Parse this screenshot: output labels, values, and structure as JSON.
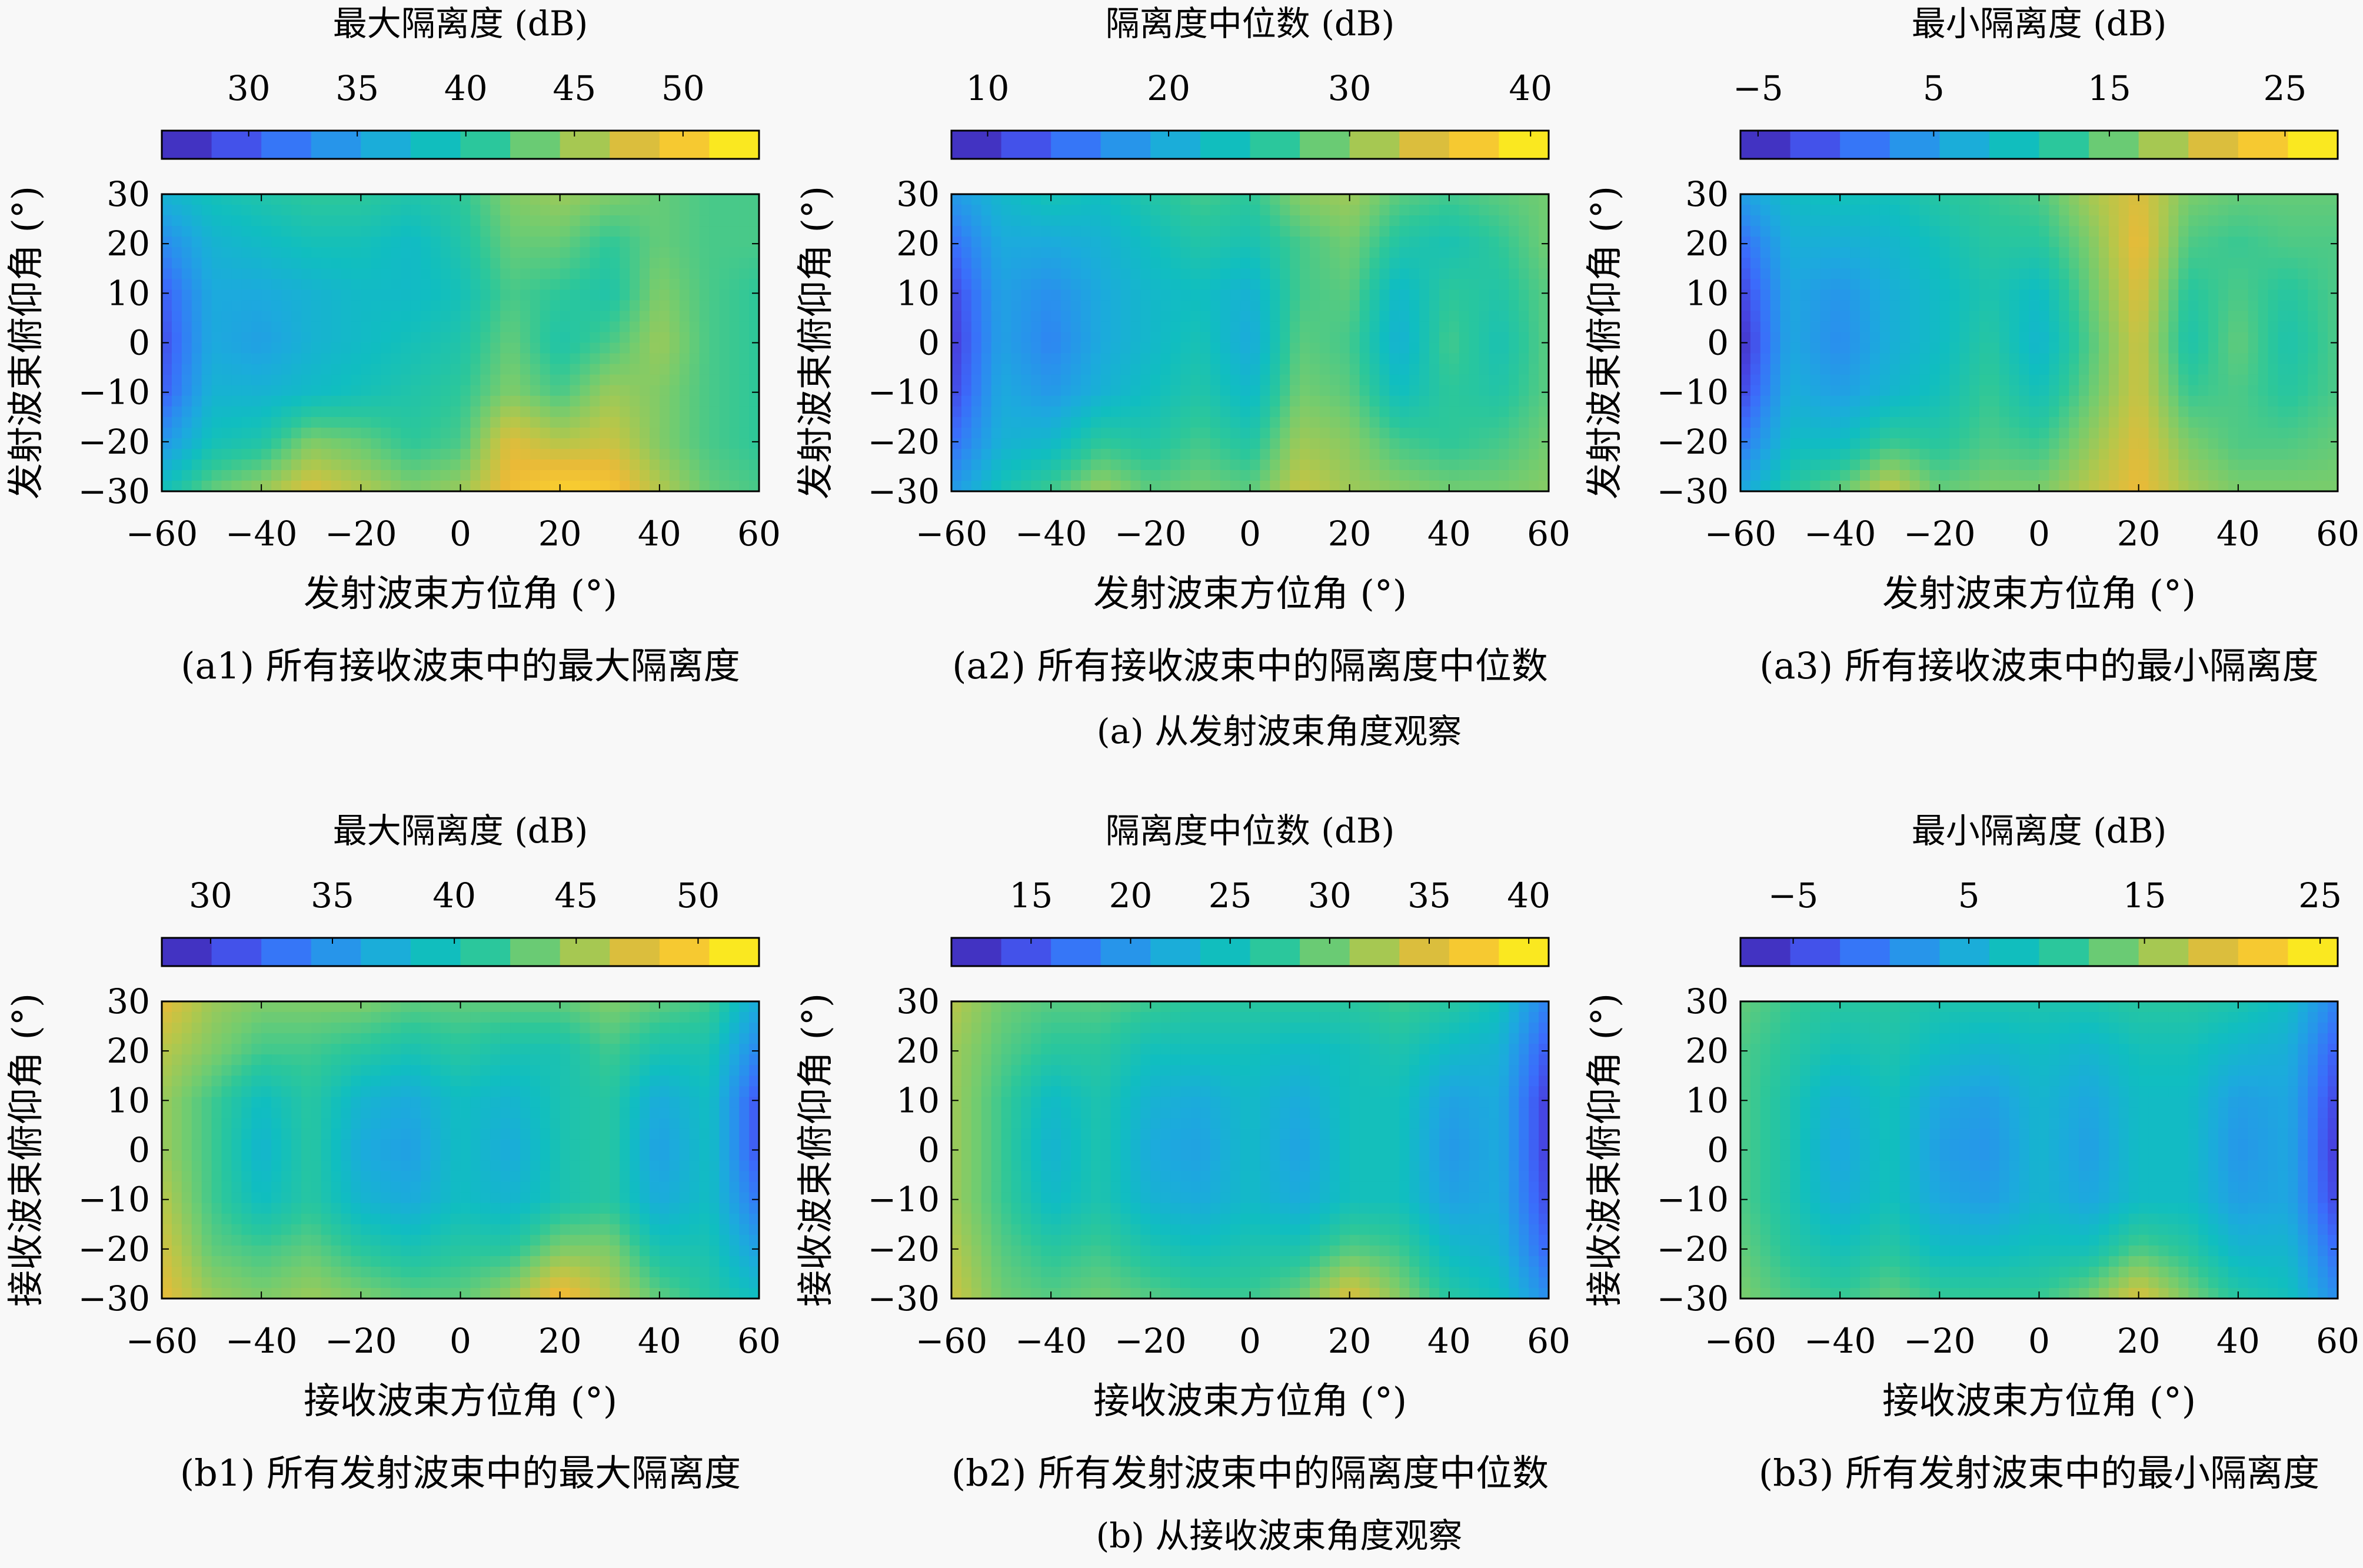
{
  "figure": {
    "group_captions": [
      "(a) 从发射波束角度观察",
      "(b) 从接收波束角度观察"
    ]
  },
  "colormap": [
    "#3e26a8",
    "#4743e0",
    "#3b6cfb",
    "#2a8fee",
    "#1caadd",
    "#10bec0",
    "#2cc79a",
    "#73cc6f",
    "#b4c74b",
    "#ebba37",
    "#fcd22e",
    "#f9fb15"
  ],
  "chart_data": [
    {
      "type": "heatmap",
      "subcaption": "(a1) 所有接收波束中的最大隔离度",
      "colorbar_title": "最大隔离度 (dB)",
      "colorbar_ticks": [
        30,
        35,
        40,
        45,
        50
      ],
      "clim": [
        26,
        53.5
      ],
      "xlabel": "发射波束方位角 (°)",
      "ylabel": "发射波束俯仰角 (°)",
      "xlim": [
        -60,
        60
      ],
      "ylim": [
        -30,
        30
      ],
      "xticks": [
        -60,
        -40,
        -20,
        0,
        20,
        40,
        60
      ],
      "yticks": [
        -30,
        -20,
        -10,
        0,
        10,
        20,
        30
      ],
      "y": [
        30,
        20,
        10,
        0,
        -10,
        -20,
        -30
      ],
      "x": [
        -60,
        -50,
        -40,
        -30,
        -20,
        -10,
        0,
        10,
        20,
        30,
        40,
        50,
        60
      ],
      "z": [
        [
          37,
          39,
          40,
          41,
          41,
          40,
          41,
          44,
          45,
          44,
          43,
          42,
          42
        ],
        [
          33,
          37,
          38,
          39,
          39,
          38,
          40,
          43,
          43,
          41,
          43,
          42,
          42
        ],
        [
          30,
          36,
          36,
          37,
          38,
          38,
          39,
          42,
          41,
          40,
          44,
          42,
          41
        ],
        [
          29,
          36,
          35,
          37,
          38,
          39,
          40,
          43,
          40,
          42,
          45,
          42,
          41
        ],
        [
          30,
          37,
          37,
          38,
          39,
          40,
          41,
          44,
          42,
          45,
          44,
          42,
          41
        ],
        [
          34,
          39,
          40,
          44,
          43,
          41,
          42,
          48,
          46,
          47,
          44,
          42,
          41
        ],
        [
          39,
          43,
          45,
          48,
          46,
          44,
          45,
          49,
          51,
          50,
          46,
          43,
          42
        ]
      ]
    },
    {
      "type": "heatmap",
      "subcaption": "(a2) 所有接收波束中的隔离度中位数",
      "colorbar_title": "隔离度中位数 (dB)",
      "colorbar_ticks": [
        10,
        20,
        30,
        40
      ],
      "clim": [
        8,
        41
      ],
      "xlabel": "发射波束方位角 (°)",
      "ylabel": "发射波束俯仰角 (°)",
      "xlim": [
        -60,
        60
      ],
      "ylim": [
        -30,
        30
      ],
      "xticks": [
        -60,
        -40,
        -20,
        0,
        20,
        40,
        60
      ],
      "yticks": [
        -30,
        -20,
        -10,
        0,
        10,
        20,
        30
      ],
      "y": [
        30,
        20,
        10,
        0,
        -10,
        -20,
        -30
      ],
      "x": [
        -60,
        -50,
        -40,
        -30,
        -20,
        -10,
        0,
        10,
        20,
        30,
        40,
        50,
        60
      ],
      "z": [
        [
          18,
          22,
          24,
          23,
          25,
          27,
          26,
          30,
          31,
          28,
          27,
          28,
          29
        ],
        [
          14,
          20,
          20,
          21,
          23,
          25,
          24,
          27,
          29,
          25,
          24,
          26,
          29
        ],
        [
          11,
          19,
          17,
          20,
          22,
          23,
          21,
          27,
          28,
          22,
          26,
          25,
          28
        ],
        [
          10,
          19,
          16,
          20,
          22,
          24,
          20,
          28,
          27,
          21,
          27,
          24,
          28
        ],
        [
          11,
          20,
          18,
          21,
          23,
          25,
          22,
          29,
          28,
          23,
          26,
          25,
          28
        ],
        [
          14,
          21,
          22,
          26,
          25,
          27,
          25,
          31,
          30,
          27,
          26,
          27,
          29
        ],
        [
          18,
          24,
          27,
          31,
          28,
          29,
          28,
          33,
          31,
          30,
          29,
          29,
          30
        ]
      ]
    },
    {
      "type": "heatmap",
      "subcaption": "(a3) 所有接收波束中的最小隔离度",
      "colorbar_title": "最小隔离度 (dB)",
      "colorbar_ticks": [
        -5,
        5,
        15,
        25
      ],
      "clim": [
        -6,
        28
      ],
      "xlabel": "发射波束方位角 (°)",
      "ylabel": "发射波束俯仰角 (°)",
      "xlim": [
        -60,
        60
      ],
      "ylim": [
        -30,
        30
      ],
      "xticks": [
        -60,
        -40,
        -20,
        0,
        20,
        40,
        60
      ],
      "yticks": [
        -30,
        -20,
        -10,
        0,
        10,
        20,
        30
      ],
      "y": [
        30,
        20,
        10,
        0,
        -10,
        -20,
        -30
      ],
      "x": [
        -60,
        -50,
        -40,
        -30,
        -20,
        -10,
        0,
        10,
        20,
        30,
        40,
        50,
        60
      ],
      "z": [
        [
          5,
          9,
          10,
          10,
          12,
          13,
          14,
          18,
          21,
          16,
          15,
          15,
          15
        ],
        [
          0,
          7,
          7,
          8,
          10,
          12,
          12,
          16,
          22,
          14,
          13,
          14,
          14
        ],
        [
          -3,
          6,
          4,
          7,
          9,
          11,
          9,
          15,
          21,
          12,
          14,
          12,
          14
        ],
        [
          -5,
          6,
          3,
          7,
          9,
          12,
          8,
          14,
          20,
          11,
          15,
          11,
          14
        ],
        [
          -3,
          7,
          5,
          8,
          10,
          13,
          10,
          15,
          20,
          13,
          14,
          12,
          14
        ],
        [
          1,
          9,
          9,
          13,
          12,
          14,
          13,
          17,
          21,
          16,
          14,
          14,
          15
        ],
        [
          6,
          12,
          15,
          20,
          15,
          16,
          16,
          19,
          22,
          18,
          16,
          16,
          16
        ]
      ]
    },
    {
      "type": "heatmap",
      "subcaption": "(b1) 所有发射波束中的最大隔离度",
      "colorbar_title": "最大隔离度 (dB)",
      "colorbar_ticks": [
        30,
        35,
        40,
        45,
        50
      ],
      "clim": [
        28,
        52.5
      ],
      "xlabel": "接收波束方位角 (°)",
      "ylabel": "接收波束俯仰角 (°)",
      "xlim": [
        -60,
        60
      ],
      "ylim": [
        -30,
        30
      ],
      "xticks": [
        -60,
        -40,
        -20,
        0,
        20,
        40,
        60
      ],
      "yticks": [
        -30,
        -20,
        -10,
        0,
        10,
        20,
        30
      ],
      "y": [
        30,
        20,
        10,
        0,
        -10,
        -20,
        -30
      ],
      "x": [
        -60,
        -50,
        -40,
        -30,
        -20,
        -10,
        0,
        10,
        20,
        30,
        40,
        50,
        60
      ],
      "z": [
        [
          48,
          45,
          44,
          44,
          44,
          43,
          43,
          43,
          43,
          44,
          43,
          42,
          37
        ],
        [
          46,
          44,
          42,
          42,
          41,
          40,
          41,
          40,
          40,
          42,
          40,
          40,
          34
        ],
        [
          45,
          42,
          39,
          41,
          38,
          37,
          39,
          38,
          40,
          41,
          37,
          39,
          31
        ],
        [
          45,
          42,
          38,
          41,
          37,
          36,
          39,
          37,
          40,
          41,
          36,
          39,
          31
        ],
        [
          46,
          42,
          39,
          41,
          38,
          37,
          39,
          38,
          40,
          41,
          37,
          39,
          33
        ],
        [
          47,
          43,
          42,
          43,
          41,
          40,
          41,
          41,
          44,
          44,
          40,
          40,
          36
        ],
        [
          48,
          45,
          44,
          45,
          44,
          43,
          43,
          45,
          49,
          46,
          43,
          41,
          39
        ]
      ]
    },
    {
      "type": "heatmap",
      "subcaption": "(b2) 所有发射波束中的隔离度中位数",
      "colorbar_title": "隔离度中位数 (dB)",
      "colorbar_ticks": [
        15,
        20,
        25,
        30,
        35,
        40
      ],
      "clim": [
        11,
        41
      ],
      "xlabel": "接收波束方位角 (°)",
      "ylabel": "接收波束俯仰角 (°)",
      "xlim": [
        -60,
        60
      ],
      "ylim": [
        -30,
        30
      ],
      "xticks": [
        -60,
        -40,
        -20,
        0,
        20,
        40,
        60
      ],
      "yticks": [
        -30,
        -20,
        -10,
        0,
        10,
        20,
        30
      ],
      "y": [
        30,
        20,
        10,
        0,
        -10,
        -20,
        -30
      ],
      "x": [
        -60,
        -50,
        -40,
        -30,
        -20,
        -10,
        0,
        10,
        20,
        30,
        40,
        50,
        60
      ],
      "z": [
        [
          33,
          30,
          29,
          29,
          28,
          27,
          27,
          27,
          27,
          28,
          27,
          25,
          18
        ],
        [
          32,
          29,
          27,
          27,
          25,
          25,
          25,
          24,
          25,
          26,
          24,
          23,
          15
        ],
        [
          32,
          28,
          24,
          26,
          23,
          22,
          24,
          22,
          25,
          25,
          21,
          22,
          13
        ],
        [
          32,
          28,
          23,
          26,
          22,
          21,
          24,
          21,
          25,
          25,
          20,
          22,
          13
        ],
        [
          32,
          28,
          24,
          26,
          23,
          22,
          24,
          22,
          25,
          25,
          21,
          22,
          14
        ],
        [
          33,
          29,
          27,
          28,
          26,
          25,
          26,
          26,
          29,
          28,
          24,
          23,
          16
        ],
        [
          34,
          30,
          29,
          30,
          29,
          28,
          28,
          30,
          35,
          31,
          27,
          25,
          19
        ]
      ]
    },
    {
      "type": "heatmap",
      "subcaption": "(b3) 所有发射波束中的最小隔离度",
      "colorbar_title": "最小隔离度 (dB)",
      "colorbar_ticks": [
        -5,
        5,
        15,
        25
      ],
      "clim": [
        -8,
        26
      ],
      "xlabel": "接收波束方位角 (°)",
      "ylabel": "接收波束俯仰角 (°)",
      "xlim": [
        -60,
        60
      ],
      "ylim": [
        -30,
        30
      ],
      "xticks": [
        -60,
        -40,
        -20,
        0,
        20,
        40,
        60
      ],
      "yticks": [
        -30,
        -20,
        -10,
        0,
        10,
        20,
        30
      ],
      "y": [
        30,
        20,
        10,
        0,
        -10,
        -20,
        -30
      ],
      "x": [
        -60,
        -50,
        -40,
        -30,
        -20,
        -10,
        0,
        10,
        20,
        30,
        40,
        50,
        60
      ],
      "z": [
        [
          13,
          11,
          10,
          10,
          9,
          9,
          9,
          9,
          10,
          10,
          9,
          7,
          0
        ],
        [
          12,
          10,
          8,
          9,
          7,
          6,
          7,
          6,
          8,
          8,
          6,
          5,
          -3
        ],
        [
          12,
          9,
          5,
          8,
          4,
          3,
          6,
          4,
          7,
          7,
          3,
          4,
          -5
        ],
        [
          12,
          9,
          4,
          8,
          3,
          2,
          6,
          3,
          7,
          7,
          2,
          4,
          -6
        ],
        [
          12,
          9,
          5,
          8,
          4,
          3,
          6,
          4,
          7,
          7,
          3,
          4,
          -5
        ],
        [
          13,
          10,
          8,
          10,
          7,
          7,
          8,
          8,
          12,
          10,
          6,
          6,
          -2
        ],
        [
          14,
          12,
          11,
          13,
          11,
          11,
          11,
          14,
          19,
          14,
          10,
          8,
          1
        ]
      ]
    }
  ]
}
